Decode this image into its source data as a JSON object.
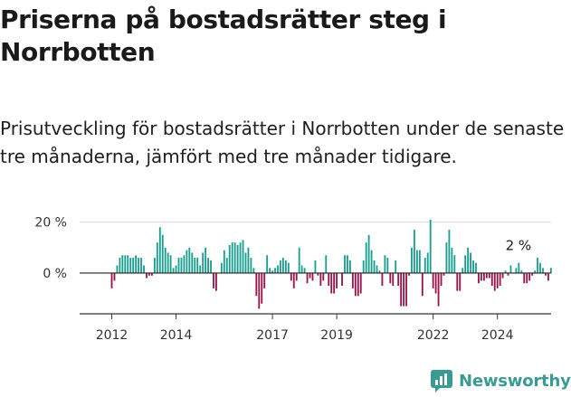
{
  "colors": {
    "positive": "#1a9e8f",
    "negative": "#97154a",
    "brand": "#3b9a94",
    "axis": "#333333"
  },
  "chart_data": {
    "type": "bar",
    "title": "Priserna på bostadsrätter steg i Norrbotten",
    "subtitle": "Prisutveckling för bostadsrätter i Norrbotten under de senaste tre månaderna, jämfört med tre månader tidigare.",
    "xlabel": "",
    "ylabel": "",
    "x_range": [
      2011.0,
      2025.67
    ],
    "ylim": [
      -16,
      22
    ],
    "x_ticks": [
      {
        "value": 2012,
        "label": "2012"
      },
      {
        "value": 2014,
        "label": "2014"
      },
      {
        "value": 2017,
        "label": "2017"
      },
      {
        "value": 2019,
        "label": "2019"
      },
      {
        "value": 2022,
        "label": "2022"
      },
      {
        "value": 2024,
        "label": "2024"
      }
    ],
    "y_ticks": [
      {
        "value": 20,
        "label": "20 %"
      },
      {
        "value": 0,
        "label": "0 %"
      }
    ],
    "start": 2012.0,
    "step": 0.08333,
    "values": [
      -6,
      -3,
      3,
      6,
      7,
      7,
      7,
      6,
      6,
      7,
      6,
      6,
      3,
      -2,
      -1,
      -1,
      6,
      12,
      18,
      15,
      10,
      8,
      7,
      2,
      3,
      6,
      6,
      7,
      9,
      10,
      8,
      6,
      6,
      3,
      8,
      10,
      6,
      5,
      -6,
      -7,
      0,
      4,
      9,
      6,
      11,
      12,
      12,
      11,
      12,
      13,
      8,
      10,
      6,
      2,
      -9,
      -14,
      -12,
      -6,
      7,
      2,
      1,
      2,
      3,
      5,
      6,
      5,
      4,
      -3,
      -6,
      -3,
      10,
      3,
      2,
      -4,
      -2,
      -3,
      5,
      -1,
      -5,
      -3,
      7,
      -5,
      -8,
      -8,
      -6,
      0,
      -5,
      7,
      7,
      5,
      -6,
      -9,
      -9,
      -8,
      5,
      12,
      15,
      9,
      5,
      3,
      1,
      -5,
      7,
      6,
      -4,
      -5,
      5,
      -5,
      -13,
      -13,
      -13,
      -1,
      10,
      17,
      9,
      9,
      -9,
      6,
      8,
      21,
      -6,
      -8,
      -13,
      -5,
      -1,
      12,
      17,
      10,
      7,
      -7,
      -7,
      2,
      7,
      10,
      8,
      5,
      4,
      -4,
      -3,
      -3,
      -2,
      -2,
      -5,
      -7,
      -6,
      -5,
      -2,
      1,
      -1,
      3,
      0,
      2,
      4,
      1,
      -4,
      -4,
      -3,
      -1,
      1,
      6,
      4,
      2,
      -1,
      -3,
      2
    ]
  },
  "annotation": {
    "label": "2 %",
    "x_value": 2024.25
  },
  "brand": {
    "name": "Newsworthy"
  }
}
